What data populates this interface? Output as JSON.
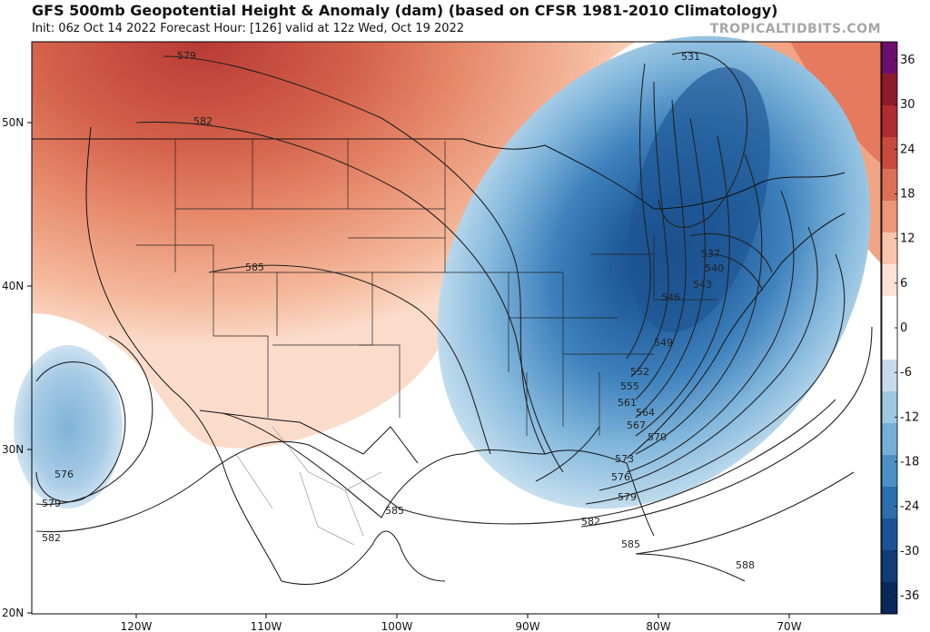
{
  "header": {
    "title": "GFS 500mb Geopotential Height & Anomaly (dam) (based on CFSR 1981-2010 Climatology)",
    "subtitle": "Init: 06z Oct 14 2022   Forecast Hour: [126]   valid at 12z Wed, Oct 19 2022",
    "brand": "TROPICALTIDBITS.COM"
  },
  "axes": {
    "lat_labels": [
      "50N",
      "40N",
      "30N",
      "20N"
    ],
    "lon_labels": [
      "120W",
      "110W",
      "100W",
      "90W",
      "80W",
      "70W"
    ]
  },
  "contour_labels": [
    "579",
    "582",
    "585",
    "531",
    "537",
    "540",
    "543",
    "546",
    "549",
    "552",
    "555",
    "561",
    "564",
    "567",
    "570",
    "573",
    "576",
    "579",
    "582",
    "585",
    "588",
    "576",
    "579",
    "582",
    "585"
  ],
  "colorbar": {
    "labels": [
      "36",
      "30",
      "24",
      "18",
      "12",
      "6",
      "0",
      "-6",
      "-12",
      "-18",
      "-24",
      "-30",
      "-36"
    ],
    "colors": [
      "#6b0f6e",
      "#8c1c2a",
      "#b12b32",
      "#c84a3c",
      "#dd6f57",
      "#ee9678",
      "#f8c4aa",
      "#fde2d5",
      "#ffffff",
      "#ffffff",
      "#c6dcec",
      "#9ec8e2",
      "#74afd6",
      "#4b91c6",
      "#2c6fae",
      "#1b5396",
      "#103c78",
      "#0a285a"
    ]
  }
}
